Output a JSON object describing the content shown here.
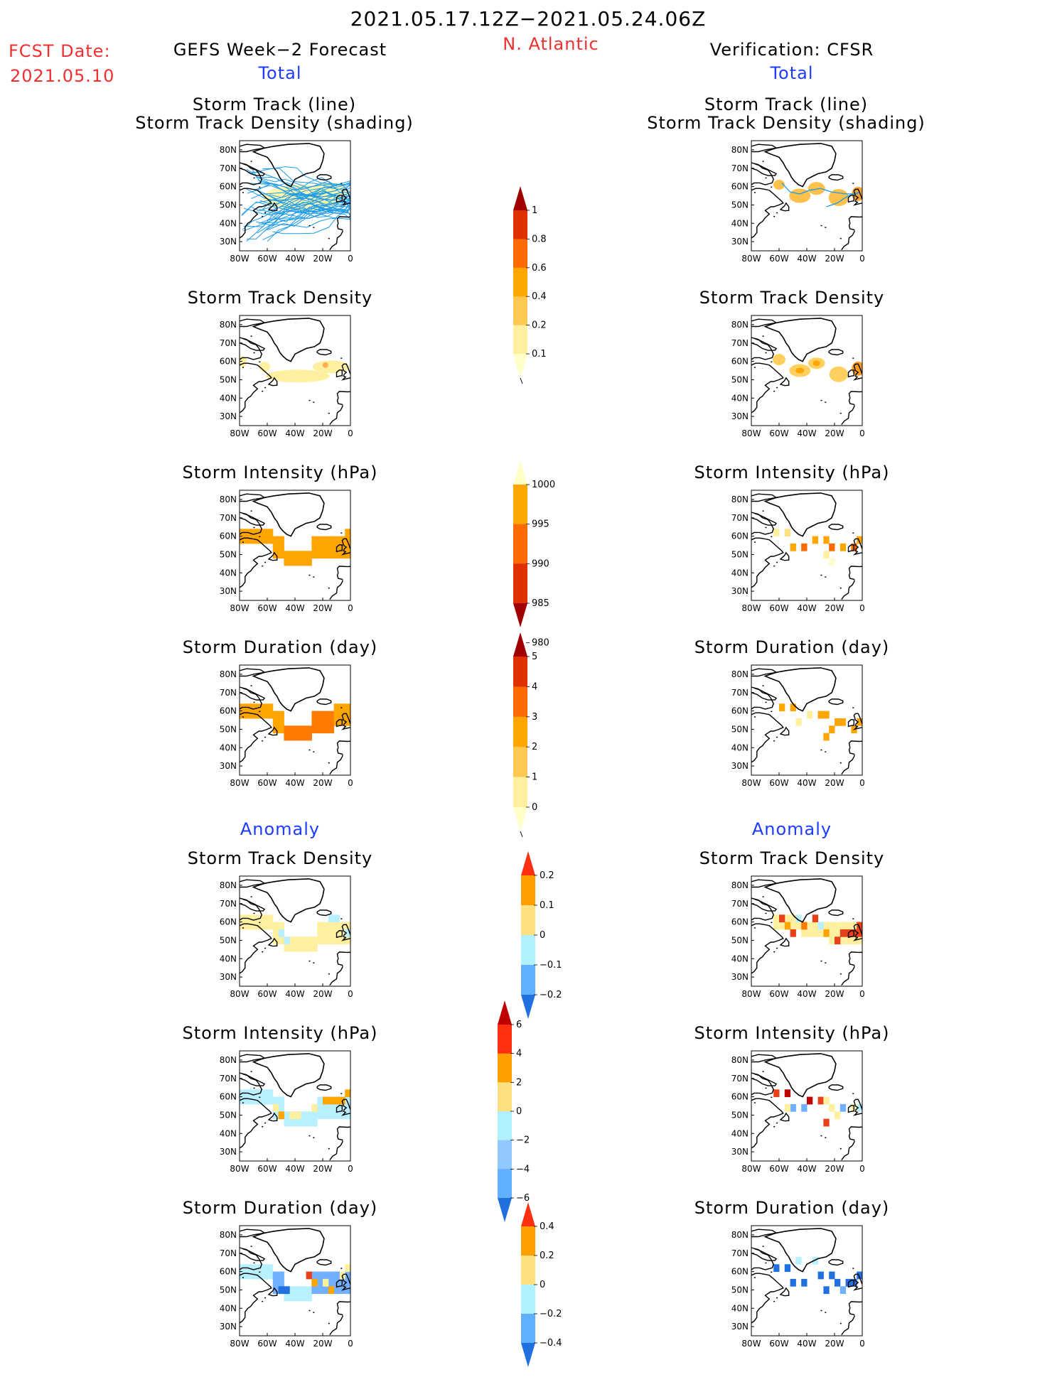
{
  "header": {
    "period": "2021.05.17.12Z−2021.05.24.06Z",
    "region": "N. Atlantic",
    "fcst_label": "FCST Date:",
    "fcst_date": "2021.05.10",
    "left_title": "GEFS Week−2 Forecast",
    "right_title": "Verification: CFSR",
    "total_label": "Total",
    "anomaly_label": "Anomaly"
  },
  "map_axes": {
    "lat_labels": [
      "80N",
      "70N",
      "60N",
      "50N",
      "40N",
      "30N"
    ],
    "lon_labels": [
      "80W",
      "60W",
      "40W",
      "20W",
      "0"
    ]
  },
  "panel_titles": {
    "track_line": "Storm Track (line)",
    "track_shading": "Storm Track Density (shading)",
    "track_density": "Storm Track Density",
    "intensity": "Storm Intensity (hPa)",
    "duration": "Storm Duration (day)"
  },
  "colorbars": {
    "density": {
      "labels": [
        "1",
        "0.8",
        "0.6",
        "0.4",
        "0.2",
        "0.1"
      ],
      "colors": [
        "#a00000",
        "#e03000",
        "#ff6a00",
        "#ffa500",
        "#ffc850",
        "#fff0a0",
        "#ffffc8"
      ]
    },
    "intensity": {
      "labels": [
        "1000",
        "995",
        "990",
        "985",
        "980"
      ],
      "colors": [
        "#ffffc8",
        "#ffa500",
        "#ff6a00",
        "#e03000",
        "#a00000"
      ]
    },
    "duration": {
      "labels": [
        "5",
        "4",
        "3",
        "2",
        "1",
        "0"
      ],
      "colors": [
        "#a00000",
        "#e03000",
        "#ff6a00",
        "#ffa500",
        "#ffc850",
        "#fff0a0",
        "#ffffc8"
      ]
    },
    "anom_density": {
      "labels": [
        "0.2",
        "0.1",
        "0",
        "−0.1",
        "−0.2"
      ],
      "colors": [
        "#ff3010",
        "#ffa000",
        "#ffe080",
        "#b0f0ff",
        "#60b0ff",
        "#2070e0"
      ]
    },
    "anom_intensity": {
      "labels": [
        "6",
        "4",
        "2",
        "0",
        "−2",
        "−4",
        "−6"
      ],
      "colors": [
        "#c00000",
        "#ff3010",
        "#ffa000",
        "#ffe080",
        "#b0f0ff",
        "#90c8ff",
        "#60b0ff",
        "#2070e0"
      ]
    },
    "anom_duration": {
      "labels": [
        "0.4",
        "0.2",
        "0",
        "−0.2",
        "−0.4"
      ],
      "colors": [
        "#ff3010",
        "#ffa000",
        "#ffe080",
        "#b0f0ff",
        "#60b0ff",
        "#2070e0"
      ]
    }
  },
  "colors": {
    "title_red": "#f03030",
    "label_blue": "#1e3cff",
    "track_line": "#1e9be6"
  }
}
